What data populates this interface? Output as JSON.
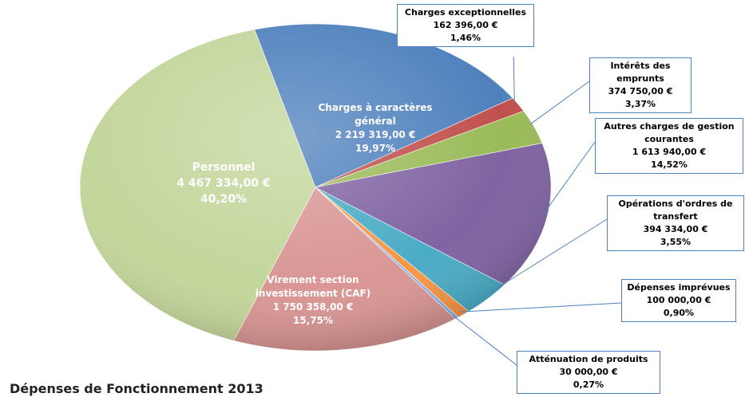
{
  "chart_data": {
    "type": "pie",
    "title": "Dépenses de Fonctionnement 2013",
    "categories": [
      "Charges à caractères général",
      "Charges exceptionnelles",
      "Intérêts des emprunts",
      "Autres charges de gestion courantes",
      "Opérations d'ordres de transfert",
      "Dépenses imprévues",
      "Atténuation de produits",
      "Virement section investissement (CAF)",
      "Personnel"
    ],
    "values": [
      2219319,
      162396,
      374750,
      1613940,
      394334,
      100000,
      30000,
      1750358,
      4467334
    ],
    "value_labels": [
      "2 219 319,00 €",
      "162 396,00 €",
      "374 750,00 €",
      "1 613 940,00 €",
      "394 334,00 €",
      "100 000,00 €",
      "30 000,00 €",
      "1 750 358,00 €",
      "4 467 334,00 €"
    ],
    "percentages": [
      19.97,
      1.46,
      3.37,
      14.52,
      3.55,
      0.9,
      0.27,
      15.75,
      40.2
    ],
    "percentage_labels": [
      "19,97%",
      "1,46%",
      "3,37%",
      "14,52%",
      "3,55%",
      "0,90%",
      "0,27%",
      "15,75%",
      "40,20%"
    ],
    "colors": [
      "#4f81bd",
      "#c0504d",
      "#9bbb59",
      "#8064a2",
      "#4bacc6",
      "#f79646",
      "#8db3e2",
      "#d99694",
      "#c3d69b"
    ]
  }
}
